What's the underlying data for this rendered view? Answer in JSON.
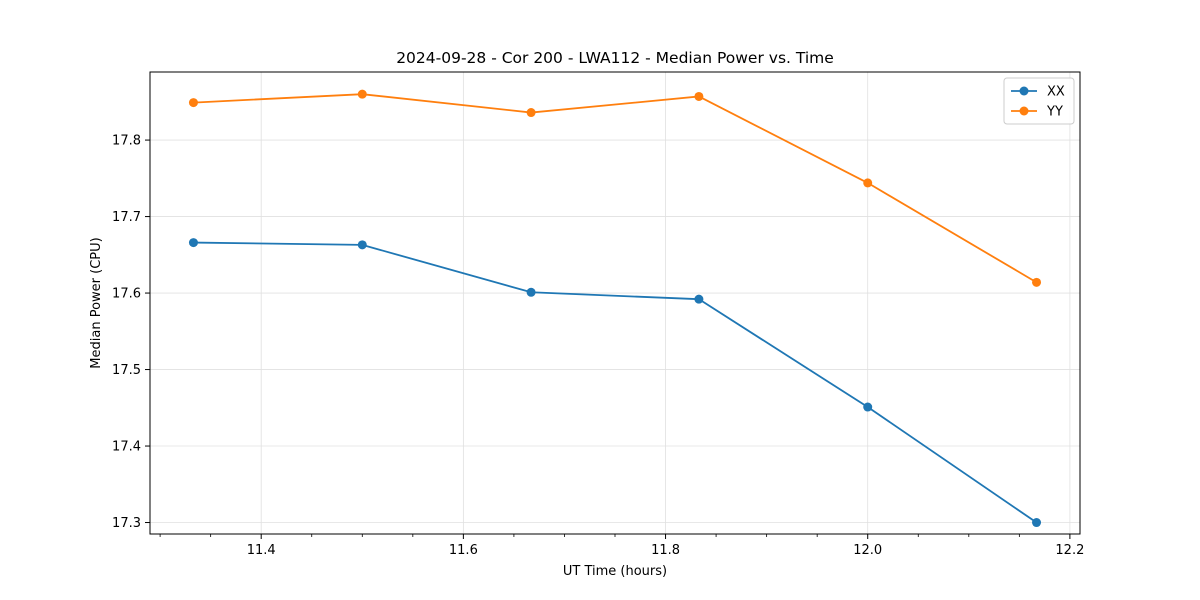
{
  "chart_data": {
    "type": "line",
    "title": "2024-09-28 - Cor 200 - LWA112 - Median Power vs. Time",
    "xlabel": "UT Time (hours)",
    "ylabel": "Median Power (CPU)",
    "xlim": [
      11.29,
      12.21
    ],
    "ylim": [
      17.285,
      17.889
    ],
    "xticks": [
      11.4,
      11.6,
      11.8,
      12.0,
      12.2
    ],
    "xtick_labels": [
      "11.4",
      "11.6",
      "11.8",
      "12.0",
      "12.2"
    ],
    "yticks": [
      17.3,
      17.4,
      17.5,
      17.6,
      17.7,
      17.8
    ],
    "ytick_labels": [
      "17.3",
      "17.4",
      "17.5",
      "17.6",
      "17.7",
      "17.8"
    ],
    "grid": true,
    "legend_position": "top-right",
    "x": [
      11.333,
      11.5,
      11.667,
      11.833,
      12.0,
      12.167
    ],
    "series": [
      {
        "name": "XX",
        "color": "#1f77b4",
        "values": [
          17.666,
          17.663,
          17.601,
          17.592,
          17.451,
          17.3
        ]
      },
      {
        "name": "YY",
        "color": "#ff7f0e",
        "values": [
          17.849,
          17.86,
          17.836,
          17.857,
          17.744,
          17.614
        ]
      }
    ]
  }
}
